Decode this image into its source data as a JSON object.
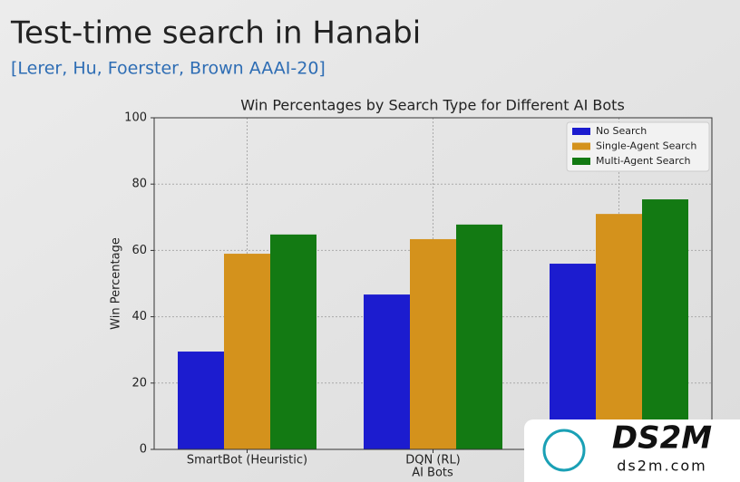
{
  "header": {
    "title": "Test-time search in Hanabi",
    "citation": "[Lerer, Hu, Foerster, Brown AAAI-20]"
  },
  "chart_data": {
    "type": "bar",
    "title": "Win Percentages by Search Type for Different AI Bots",
    "x_label": "AI Bots",
    "y_label": "Win Percentage",
    "categories": [
      "SmartBot (Heuristic)",
      "DQN (RL)",
      null
    ],
    "series": [
      {
        "name": "No Search",
        "color": "#1c1ccf",
        "values": [
          29.5,
          46.7,
          56
        ]
      },
      {
        "name": "Single-Agent Search",
        "color": "#d4921c",
        "values": [
          59,
          63.4,
          71
        ]
      },
      {
        "name": "Multi-Agent Search",
        "color": "#137a13",
        "values": [
          64.8,
          67.8,
          75.4
        ]
      }
    ],
    "ylim": [
      0,
      100
    ],
    "yticks": [
      0,
      20,
      40,
      60,
      80,
      100
    ],
    "grid": true,
    "legend": "upper right"
  },
  "watermark": {
    "brand": "DS2M",
    "url": "ds2m.com"
  }
}
